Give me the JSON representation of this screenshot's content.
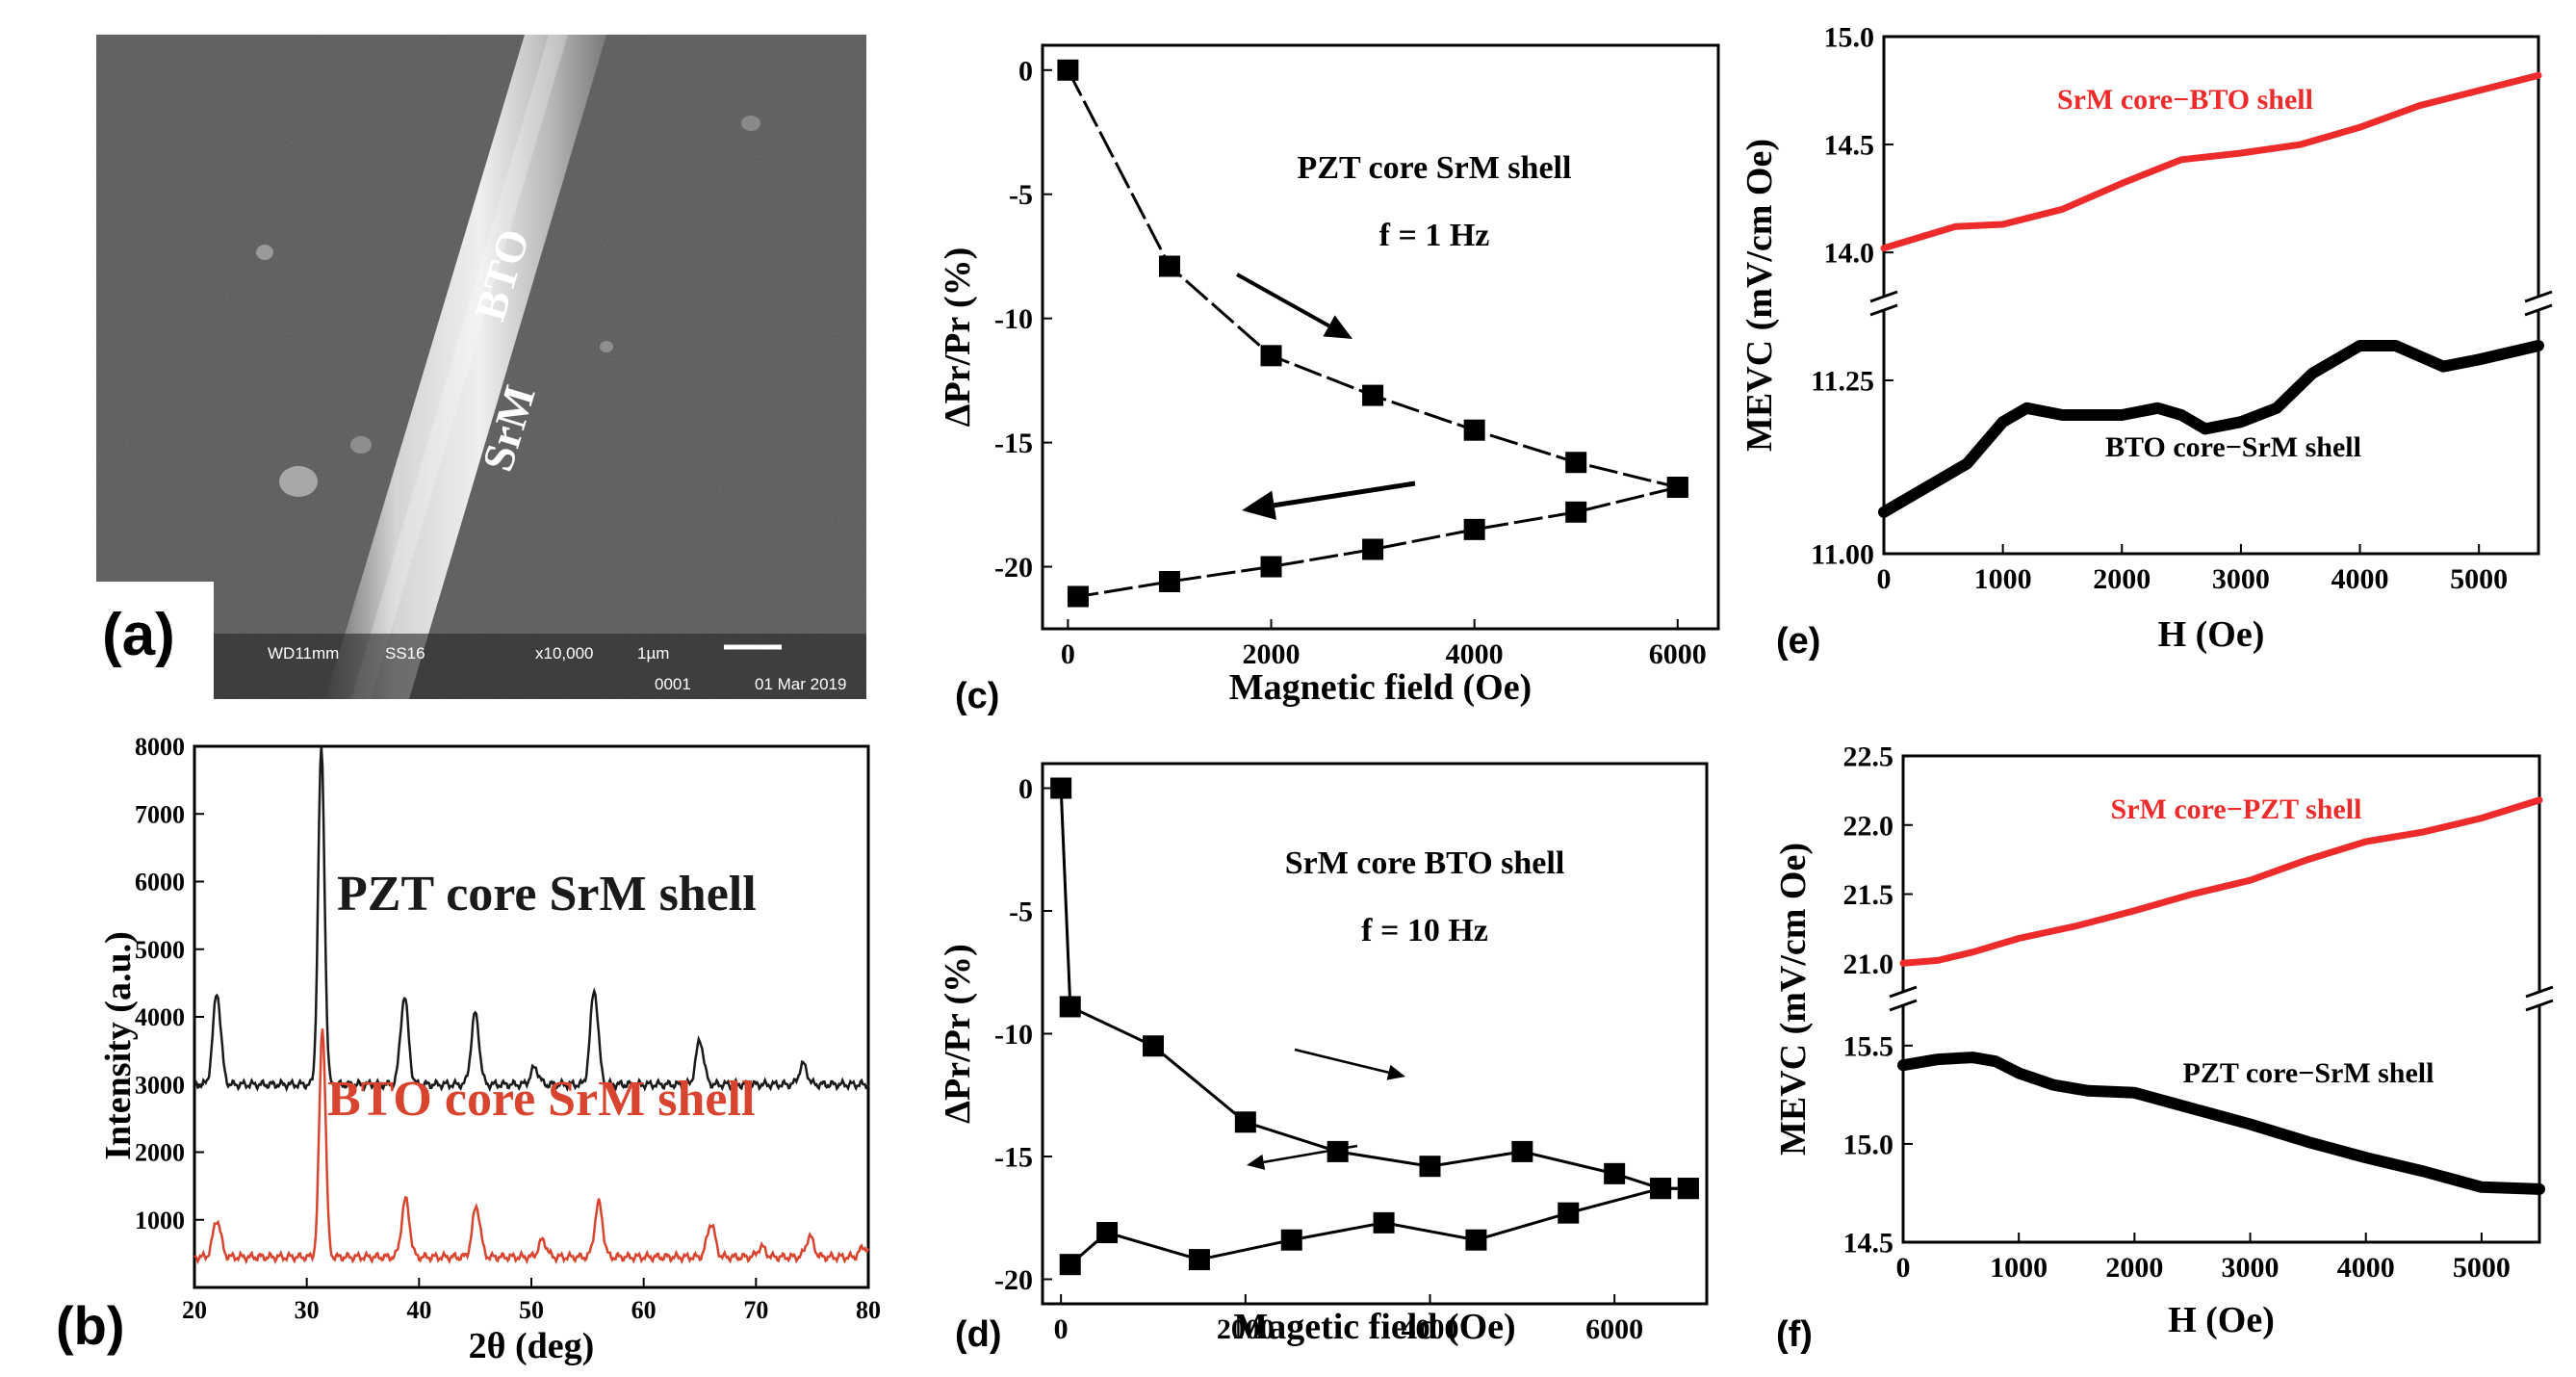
{
  "panels": {
    "a": {
      "label": "(a)",
      "sem": {
        "material_1": "BTO",
        "material_2": "SrM",
        "info": [
          "WD11mm",
          "SS16",
          "x10,000",
          "1µm",
          "0001",
          "01 Mar 2019"
        ]
      }
    },
    "b": {
      "label": "(b)"
    },
    "c": {
      "label": "(c)"
    },
    "d": {
      "label": "(d)"
    },
    "e": {
      "label": "(e)"
    },
    "f": {
      "label": "(f)"
    }
  },
  "chart_data": [
    {
      "id": "b",
      "type": "line",
      "xlabel": "2θ (deg)",
      "ylabel": "Intensity (a.u.)",
      "xlim": [
        20,
        80
      ],
      "ylim": [
        0,
        8000
      ],
      "xticks": [
        20,
        30,
        40,
        50,
        60,
        70,
        80
      ],
      "yticks": [
        1000,
        2000,
        3000,
        4000,
        5000,
        6000,
        7000,
        8000
      ],
      "series": [
        {
          "name": "PZT core SrM shell",
          "color": "#1a1a1a",
          "baseline": 3000,
          "peaks": [
            [
              22,
              1350
            ],
            [
              31.3,
              5000
            ],
            [
              38.7,
              1300
            ],
            [
              45,
              1050
            ],
            [
              50.3,
              250
            ],
            [
              55.6,
              1400
            ],
            [
              65,
              650
            ],
            [
              74.2,
              300
            ]
          ]
        },
        {
          "name": "BTO core SrM shell",
          "color": "#d9442f",
          "baseline": 450,
          "peaks": [
            [
              22,
              550
            ],
            [
              31.4,
              3400
            ],
            [
              38.8,
              850
            ],
            [
              45.1,
              750
            ],
            [
              51,
              250
            ],
            [
              56,
              800
            ],
            [
              66,
              500
            ],
            [
              70.5,
              150
            ],
            [
              74.8,
              300
            ],
            [
              79.6,
              150
            ]
          ]
        }
      ]
    },
    {
      "id": "c",
      "type": "line",
      "title": "PZT core SrM shell",
      "annotation": "f = 1 Hz",
      "xlabel": "Magnetic field (Oe)",
      "ylabel": "ΔPr/Pr (%)",
      "xlim": [
        -250,
        6400
      ],
      "ylim": [
        -22.5,
        1
      ],
      "xticks": [
        0,
        2000,
        4000,
        6000
      ],
      "yticks": [
        0,
        -5,
        -10,
        -15,
        -20
      ],
      "series": [
        {
          "name": "increasing",
          "x": [
            0,
            1000,
            2000,
            3000,
            4000,
            5000,
            6000
          ],
          "y": [
            0,
            -7.9,
            -11.5,
            -13.1,
            -14.5,
            -15.8,
            -16.8
          ]
        },
        {
          "name": "decreasing",
          "x": [
            6000,
            5000,
            4000,
            3000,
            2000,
            1000,
            100
          ],
          "y": [
            -16.8,
            -17.8,
            -18.5,
            -19.3,
            -20.0,
            -20.6,
            -21.2
          ]
        }
      ]
    },
    {
      "id": "d",
      "type": "line",
      "title": "SrM core BTO shell",
      "annotation": "f = 10 Hz",
      "xlabel": "Magetic field (Oe)",
      "ylabel": "ΔPr/Pr (%)",
      "xlim": [
        -200,
        7000
      ],
      "ylim": [
        -21,
        1
      ],
      "xticks": [
        0,
        2000,
        4000,
        6000
      ],
      "yticks": [
        0,
        -5,
        -10,
        -15,
        -20
      ],
      "series": [
        {
          "name": "increasing",
          "x": [
            0,
            100,
            1000,
            2000,
            3000,
            4000,
            5000,
            6000,
            6500,
            6800
          ],
          "y": [
            0,
            -8.9,
            -10.5,
            -13.6,
            -14.8,
            -15.4,
            -14.8,
            -15.7,
            -16.3,
            -16.3
          ]
        },
        {
          "name": "decreasing",
          "x": [
            6800,
            6500,
            5500,
            4500,
            3500,
            2500,
            1500,
            500,
            100
          ],
          "y": [
            -16.3,
            -16.3,
            -17.3,
            -18.4,
            -17.7,
            -18.4,
            -19.2,
            -18.1,
            -19.4
          ]
        }
      ]
    },
    {
      "id": "e",
      "type": "line",
      "xlabel": "H (Oe)",
      "ylabel": "MEVC (mV/cm Oe)",
      "xlim": [
        0,
        5500
      ],
      "xticks": [
        0,
        1000,
        2000,
        3000,
        4000,
        5000
      ],
      "upper": {
        "ylim": [
          13.8,
          15.0
        ],
        "yticks": [
          14.0,
          14.5,
          15.0
        ]
      },
      "lower": {
        "ylim": [
          11.0,
          11.35
        ],
        "yticks": [
          11.0,
          11.25
        ]
      },
      "series": [
        {
          "name": "SrM core−BTO shell",
          "color": "#ee2b2b",
          "axis": "upper",
          "x": [
            0,
            300,
            600,
            1000,
            1500,
            2000,
            2500,
            3000,
            3500,
            4000,
            4500,
            5000,
            5500
          ],
          "y": [
            14.02,
            14.07,
            14.12,
            14.13,
            14.2,
            14.32,
            14.43,
            14.46,
            14.5,
            14.58,
            14.68,
            14.75,
            14.82
          ]
        },
        {
          "name": "BTO core−SrM shell",
          "color": "#000000",
          "axis": "lower",
          "x": [
            0,
            300,
            700,
            1000,
            1200,
            1500,
            2000,
            2300,
            2500,
            2700,
            3000,
            3300,
            3600,
            4000,
            4300,
            4700,
            5000,
            5500
          ],
          "y": [
            11.06,
            11.09,
            11.13,
            11.19,
            11.21,
            11.2,
            11.2,
            11.21,
            11.2,
            11.18,
            11.19,
            11.21,
            11.26,
            11.3,
            11.3,
            11.27,
            11.28,
            11.3
          ]
        }
      ]
    },
    {
      "id": "f",
      "type": "line",
      "xlabel": "H (Oe)",
      "ylabel": "MEVC (mV/cm Oe)",
      "xlim": [
        0,
        5500
      ],
      "xticks": [
        0,
        1000,
        2000,
        3000,
        4000,
        5000
      ],
      "upper": {
        "ylim": [
          20.8,
          22.5
        ],
        "yticks": [
          21.0,
          21.5,
          22.0,
          22.5
        ]
      },
      "lower": {
        "ylim": [
          14.5,
          15.7
        ],
        "yticks": [
          14.5,
          15.0,
          15.5
        ]
      },
      "series": [
        {
          "name": "SrM core−PZT shell",
          "color": "#ee2b2b",
          "axis": "upper",
          "x": [
            0,
            300,
            600,
            1000,
            1500,
            2000,
            2500,
            3000,
            3500,
            4000,
            4500,
            5000,
            5500
          ],
          "y": [
            21.0,
            21.02,
            21.08,
            21.18,
            21.27,
            21.38,
            21.5,
            21.6,
            21.75,
            21.88,
            21.95,
            22.05,
            22.18
          ]
        },
        {
          "name": "PZT core−SrM shell",
          "color": "#000000",
          "axis": "lower",
          "x": [
            0,
            300,
            600,
            800,
            1000,
            1300,
            1600,
            2000,
            2500,
            3000,
            3500,
            4000,
            4500,
            5000,
            5500
          ],
          "y": [
            15.4,
            15.43,
            15.44,
            15.42,
            15.36,
            15.3,
            15.27,
            15.26,
            15.18,
            15.1,
            15.01,
            14.93,
            14.86,
            14.78,
            14.77
          ]
        }
      ]
    }
  ]
}
